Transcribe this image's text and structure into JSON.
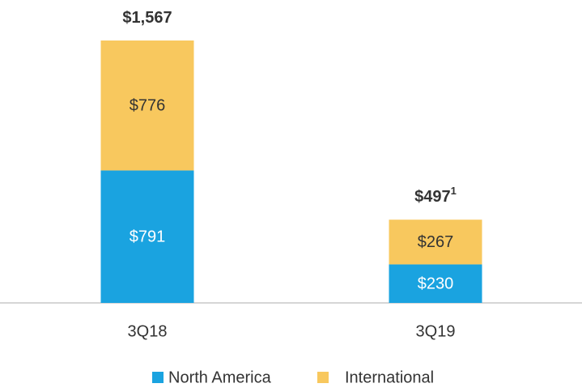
{
  "chart_data": {
    "type": "stacked_bar",
    "categories": [
      "3Q18",
      "3Q19"
    ],
    "series": [
      {
        "name": "North America",
        "color": "#1aa3e0",
        "values": [
          791,
          230
        ],
        "value_labels": [
          "$791",
          "$230"
        ],
        "label_color": "#ffffff"
      },
      {
        "name": "International",
        "color": "#f8c85e",
        "values": [
          776,
          267
        ],
        "value_labels": [
          "$776",
          "$267"
        ],
        "label_color": "#333333"
      }
    ],
    "totals": [
      1567,
      497
    ],
    "total_labels": [
      "$1,567",
      "$497"
    ],
    "total_notes": [
      null,
      "1"
    ],
    "legend": "bottom"
  }
}
